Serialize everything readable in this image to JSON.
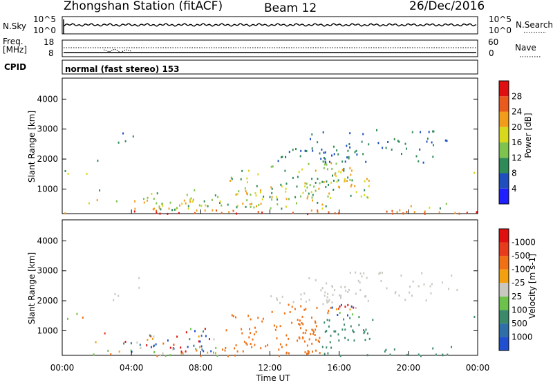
{
  "header": {
    "station": "Zhongshan Station (fitACF)",
    "beam": "Beam 12",
    "date": "26/Dec/2016"
  },
  "sky_panel": {
    "left_label": "N.Sky",
    "left_ticks": [
      "10^5",
      "10^0"
    ],
    "right_ticks": [
      "10^5",
      "10^0"
    ],
    "right_label": "N.Search"
  },
  "freq_panel": {
    "left_label_line1": "Freq.",
    "left_label_line2": "[MHz]",
    "left_ticks": [
      "18",
      "8"
    ],
    "right_ticks": [
      "60",
      "0"
    ],
    "right_label": "Nave"
  },
  "cpid_panel": {
    "label": "CPID",
    "mode_text": "normal (fast stereo) 153"
  },
  "x_axis": {
    "title": "Time UT",
    "ticks": [
      "00:00",
      "04:00",
      "08:00",
      "12:00",
      "16:00",
      "20:00",
      "00:00"
    ]
  },
  "chart_data": [
    {
      "type": "heatmap",
      "name": "power",
      "ylabel": "Slant Range [km]",
      "yticks": [
        1000,
        2000,
        3000,
        4000
      ],
      "ylim": [
        180,
        4700
      ],
      "xlim": [
        0,
        24
      ],
      "colorbar": {
        "label": "Power [dB]",
        "ticks": [
          "4",
          "8",
          "12",
          "16",
          "20",
          "24",
          "28"
        ],
        "colors": [
          "#1f1fff",
          "#1f4fbf",
          "#2e8b57",
          "#7fc34f",
          "#d8d81c",
          "#f29d1a",
          "#ea5a1c",
          "#e01010"
        ]
      }
    },
    {
      "type": "heatmap",
      "name": "velocity",
      "ylabel": "Slant Range [km]",
      "yticks": [
        1000,
        2000,
        3000,
        4000
      ],
      "ylim": [
        180,
        4700
      ],
      "xlim": [
        0,
        24
      ],
      "colorbar": {
        "label": "Velocity [m s-1]",
        "ticks": [
          "1000",
          "500",
          "100",
          "25",
          "-25",
          "-100",
          "-500",
          "-1000"
        ],
        "colors": [
          "#2050d0",
          "#2e6fa8",
          "#3a8a6a",
          "#6cc24a",
          "#c8c8c0",
          "#f2a010",
          "#ef7015",
          "#e83b1b",
          "#e01010"
        ]
      }
    }
  ]
}
